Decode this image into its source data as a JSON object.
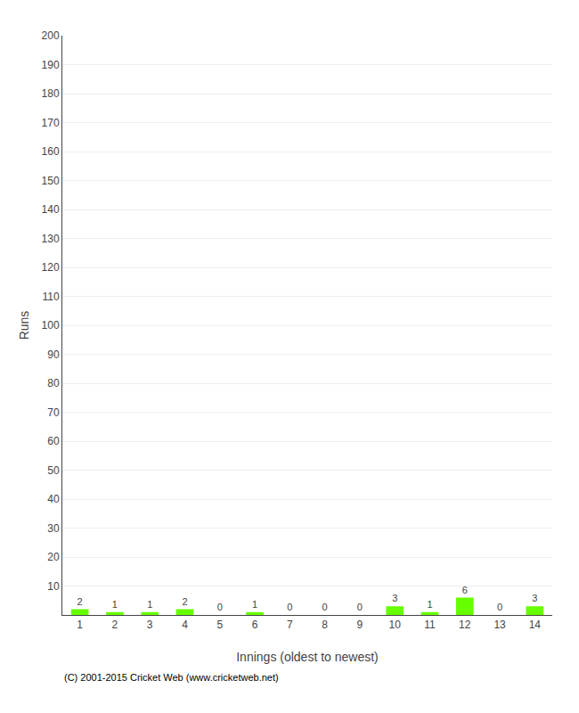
{
  "chart_data": {
    "type": "bar",
    "xlabel": "Innings (oldest to newest)",
    "ylabel": "Runs",
    "categories": [
      "1",
      "2",
      "3",
      "4",
      "5",
      "6",
      "7",
      "8",
      "9",
      "10",
      "11",
      "12",
      "13",
      "14"
    ],
    "values": [
      2,
      1,
      1,
      2,
      0,
      1,
      0,
      0,
      0,
      3,
      1,
      6,
      0,
      3
    ],
    "color": "#66ff00",
    "ylim": [
      0,
      200
    ],
    "yticks": [
      10,
      20,
      30,
      40,
      50,
      60,
      70,
      80,
      90,
      100,
      110,
      120,
      130,
      140,
      150,
      160,
      170,
      180,
      190,
      200
    ],
    "grid": true,
    "data_labels": true,
    "annotations": [
      "(C) 2001-2015 Cricket Web (www.cricketweb.net)"
    ]
  }
}
